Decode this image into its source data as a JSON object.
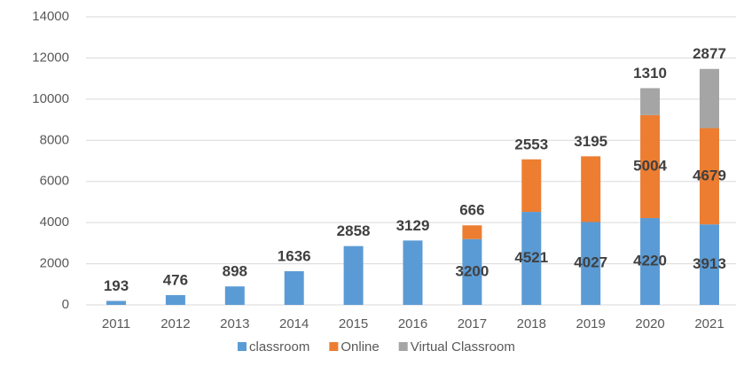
{
  "chart_data": {
    "type": "stacked_bar",
    "categories": [
      "2011",
      "2012",
      "2013",
      "2014",
      "2015",
      "2016",
      "2017",
      "2018",
      "2019",
      "2020",
      "2021"
    ],
    "series": [
      {
        "name": "classroom",
        "color": "#5b9bd5",
        "values": [
          193,
          476,
          898,
          1636,
          2858,
          3129,
          3200,
          4521,
          4027,
          4220,
          3913
        ]
      },
      {
        "name": "Online",
        "color": "#ed7d31",
        "values": [
          null,
          null,
          null,
          null,
          null,
          null,
          666,
          2553,
          3195,
          5004,
          4679
        ]
      },
      {
        "name": "Virtual Classroom",
        "color": "#a5a5a5",
        "values": [
          null,
          null,
          null,
          null,
          null,
          null,
          null,
          null,
          null,
          1310,
          2877
        ]
      }
    ],
    "ylim": [
      0,
      14000
    ],
    "yticks": [
      0,
      2000,
      4000,
      6000,
      8000,
      10000,
      12000,
      14000
    ],
    "grid": true,
    "legend": "bottom"
  }
}
